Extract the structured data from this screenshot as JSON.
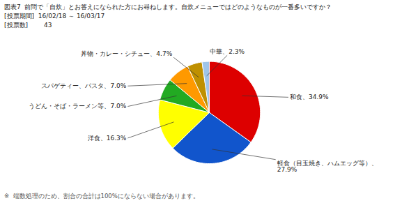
{
  "chart_data": {
    "type": "pie",
    "title": "図表7  前問で「自炊」とお答えになられた方にお尋ねします。自炊メニューではどのようなものが一番多いですか？",
    "subtitle": [
      "[投票期間]  16/02/18 ～ 16/03/17",
      "[投票数]        43"
    ],
    "values": [
      34.9,
      27.9,
      16.3,
      7.0,
      7.0,
      4.7,
      2.3
    ],
    "value_labels": [
      "和食、34.9%",
      "軽食（目玉焼き、ハムエッグ等）、\n27.9%",
      "洋食、16.3%",
      "うどん・そば・ラーメン等、7.0%",
      "スパゲティー、パスタ、7.0%",
      "丼物・カレー・シチュー、4.7%",
      "中華、2.3%"
    ],
    "data_labels": true,
    "colors": [
      "#dd0000",
      "#1155cc",
      "#ffff00",
      "#22aa22",
      "#ff9900",
      "#bf9000",
      "#9fc5e8"
    ],
    "annotations": [
      "※  端数処理のため、割合の合計は100%にならない場合があります。"
    ]
  }
}
